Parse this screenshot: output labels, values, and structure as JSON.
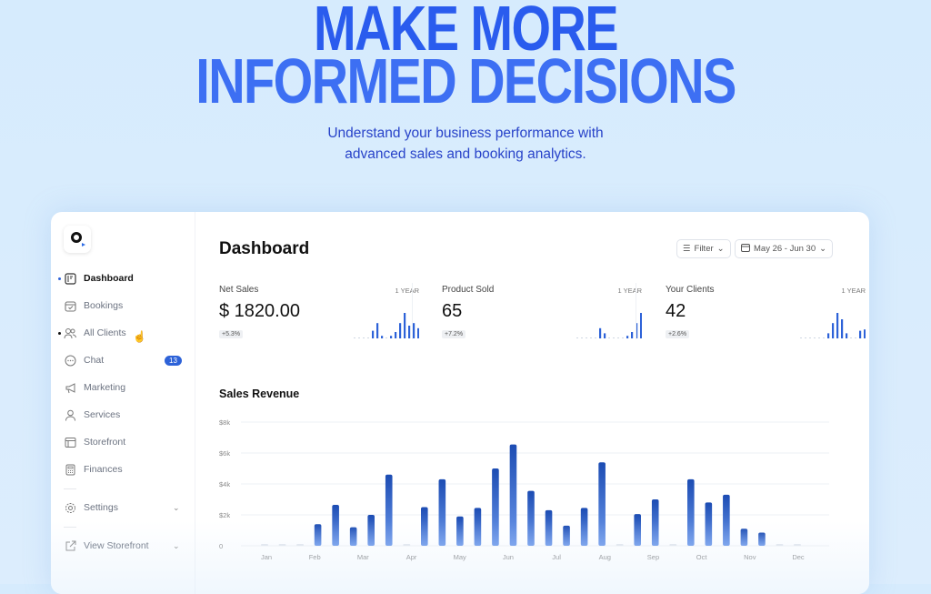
{
  "hero": {
    "title_line1": "MAKE MORE",
    "title_line2": "INFORMED DECISIONS",
    "subtitle_line1": "Understand your business performance with",
    "subtitle_line2": "advanced sales and booking analytics."
  },
  "sidebar": {
    "items": [
      {
        "label": "Dashboard",
        "icon": "dashboard-icon"
      },
      {
        "label": "Bookings",
        "icon": "calendar-check-icon"
      },
      {
        "label": "All Clients",
        "icon": "users-icon"
      },
      {
        "label": "Chat",
        "icon": "chat-icon",
        "badge": "13"
      },
      {
        "label": "Marketing",
        "icon": "megaphone-icon"
      },
      {
        "label": "Services",
        "icon": "user-icon"
      },
      {
        "label": "Storefront",
        "icon": "layout-icon"
      },
      {
        "label": "Finances",
        "icon": "calculator-icon"
      }
    ],
    "settings": "Settings",
    "view_storefront": "View Storefront"
  },
  "header": {
    "title": "Dashboard",
    "filter": "Filter",
    "date_range": "May 26 - Jun 30"
  },
  "stats": [
    {
      "name": "Net Sales",
      "period": "1 YEAR",
      "value": "$ 1820.00",
      "change": "+5.3%",
      "spark": [
        0,
        0,
        0,
        0,
        0.3,
        0.6,
        0.1,
        0,
        0.1,
        0.25,
        0.6,
        1,
        0.5,
        0.6,
        0.4
      ]
    },
    {
      "name": "Product Sold",
      "period": "1 YEAR",
      "value": "65",
      "change": "+7.2%",
      "spark": [
        0,
        0,
        0,
        0,
        0,
        0.4,
        0.2,
        0,
        0,
        0,
        0,
        0.1,
        0.25,
        0.6,
        1
      ]
    },
    {
      "name": "Your Clients",
      "period": "1 YEAR",
      "value": "42",
      "change": "+2.6%",
      "spark": [
        0,
        0,
        0,
        0,
        0,
        0,
        0.2,
        0.6,
        1,
        0.75,
        0.2,
        0,
        0,
        0.3,
        0.35
      ]
    }
  ],
  "colors": {
    "accent": "#2d62d8",
    "bar_top": "#1c4cb3",
    "bar_bottom": "#6b97ea",
    "title": "#2c5ff0"
  },
  "chart_data": {
    "type": "bar",
    "title": "Sales Revenue",
    "xlabel": "",
    "ylabel": "",
    "ylim": [
      0,
      8000
    ],
    "grid": true,
    "yticks": [
      "0",
      "$2k",
      "$4k",
      "$6k",
      "$8k"
    ],
    "month_labels": [
      "Jan",
      "Feb",
      "Mar",
      "Apr",
      "May",
      "Jun",
      "Jul",
      "Aug",
      "Sep",
      "Oct",
      "Nov",
      "Dec"
    ],
    "values": [
      0,
      0,
      0,
      1400,
      2650,
      1200,
      2000,
      4600,
      0,
      2500,
      4300,
      1900,
      2450,
      5000,
      6550,
      3550,
      2300,
      1300,
      2450,
      5400,
      0,
      2050,
      3000,
      0,
      4300,
      2800,
      3300,
      1100,
      850,
      0,
      0
    ]
  }
}
